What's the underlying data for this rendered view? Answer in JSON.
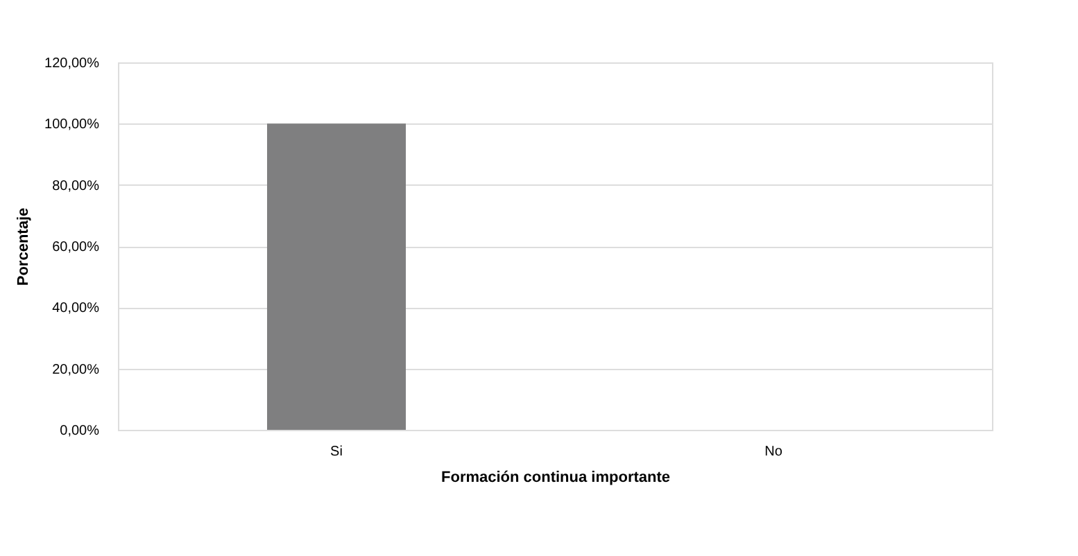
{
  "chart_data": {
    "type": "bar",
    "xlabel": "Formación continua importante",
    "ylabel": "Porcentaje",
    "categories": [
      "Si",
      "No"
    ],
    "values": [
      100,
      0
    ],
    "color": "#7f7f80",
    "ylim": [
      0,
      120
    ],
    "yticks": [
      {
        "value": 0,
        "label": "0,00%"
      },
      {
        "value": 20,
        "label": "20,00%"
      },
      {
        "value": 40,
        "label": "40,00%"
      },
      {
        "value": 60,
        "label": "60,00%"
      },
      {
        "value": 80,
        "label": "80,00%"
      },
      {
        "value": 100,
        "label": "100,00%"
      },
      {
        "value": 120,
        "label": "120,00%"
      }
    ],
    "grid": "y"
  }
}
